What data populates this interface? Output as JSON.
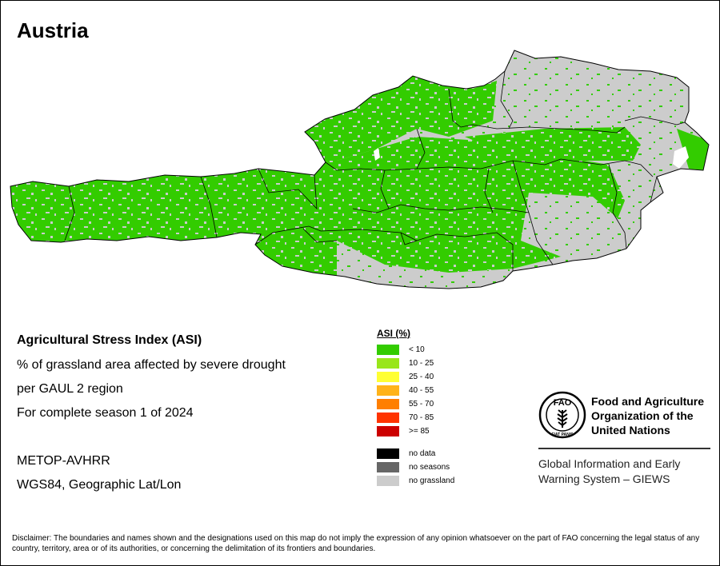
{
  "title": "Austria",
  "info": {
    "index_name": "Agricultural Stress Index (ASI)",
    "description": "% of grassland area affected by severe drought",
    "unit": "per GAUL 2 region",
    "period": "For complete season 1 of 2024",
    "sensor": "METOP-AVHRR",
    "projection": "WGS84, Geographic Lat/Lon"
  },
  "legend": {
    "title": "ASI (%)",
    "classes": [
      {
        "label": "< 10",
        "color": "#33cc00"
      },
      {
        "label": "10 - 25",
        "color": "#99e61a"
      },
      {
        "label": "25 - 40",
        "color": "#ffff33"
      },
      {
        "label": "40 - 55",
        "color": "#ffb31a"
      },
      {
        "label": "55 - 70",
        "color": "#ff7f00"
      },
      {
        "label": "70 - 85",
        "color": "#ff3300"
      },
      {
        "label": ">= 85",
        "color": "#cc0000"
      }
    ],
    "extra": [
      {
        "label": "no data",
        "color": "#000000"
      },
      {
        "label": "no seasons",
        "color": "#666666"
      },
      {
        "label": "no grassland",
        "color": "#cccccc"
      }
    ]
  },
  "logo": {
    "org_name": [
      "Food and Agriculture",
      "Organization of the",
      "United Nations"
    ],
    "letters": "FAO",
    "motto": "FIAT PANIS",
    "system": [
      "Global Information and Early",
      "Warning System – GIEWS"
    ]
  },
  "disclaimer": "Disclaimer: The boundaries and names shown and the designations used on this map do not imply the expression of any opinion whatsoever on the part of FAO concerning the legal status of any country, territory, area or of its authorities, or concerning the delimitation of its frontiers and boundaries.",
  "colors": {
    "low_stress": "#33cc00",
    "no_grassland": "#cccccc",
    "boundary": "#000000"
  }
}
